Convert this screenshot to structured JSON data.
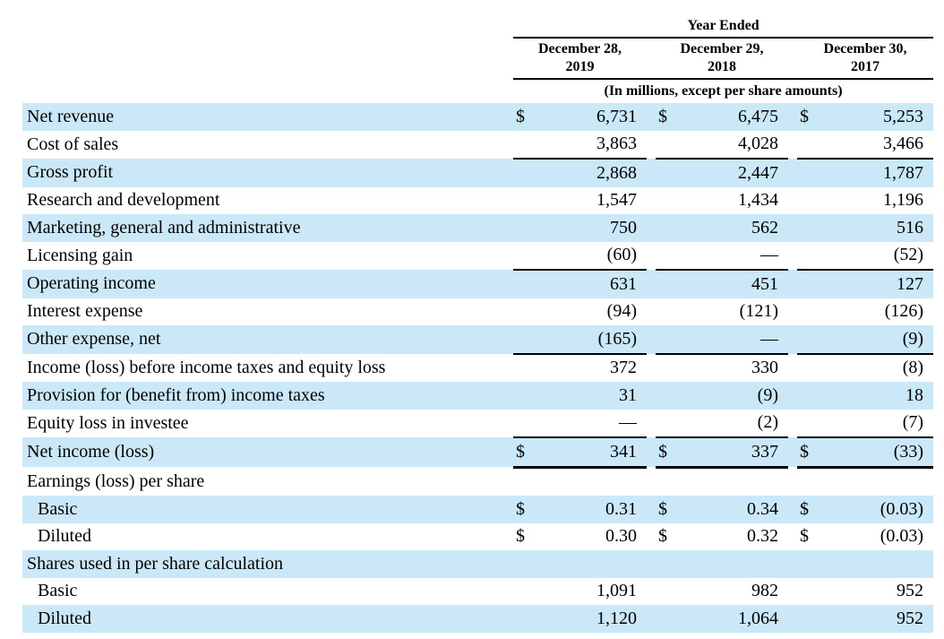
{
  "colors": {
    "row_stripe": "#cbe8f9",
    "text": "#000000",
    "rule": "#000000",
    "background": "#ffffff"
  },
  "table": {
    "currency_symbol": "$",
    "header": {
      "year_ended": "Year Ended",
      "units_note": "(In millions, except per share amounts)",
      "columns": [
        {
          "line1": "December 28,",
          "line2": "2019"
        },
        {
          "line1": "December 29,",
          "line2": "2018"
        },
        {
          "line1": "December 30,",
          "line2": "2017"
        }
      ]
    },
    "rows": [
      {
        "label": "Net revenue",
        "indent": false,
        "shaded": true,
        "dollar": true,
        "values": [
          "6,731",
          "6,475",
          "5,253"
        ],
        "underline": "none"
      },
      {
        "label": "Cost of sales",
        "indent": false,
        "shaded": false,
        "dollar": false,
        "values": [
          "3,863",
          "4,028",
          "3,466"
        ],
        "underline": "thin"
      },
      {
        "label": "Gross profit",
        "indent": false,
        "shaded": true,
        "dollar": false,
        "values": [
          "2,868",
          "2,447",
          "1,787"
        ],
        "underline": "none"
      },
      {
        "label": "Research and development",
        "indent": false,
        "shaded": false,
        "dollar": false,
        "values": [
          "1,547",
          "1,434",
          "1,196"
        ],
        "underline": "none"
      },
      {
        "label": "Marketing, general and administrative",
        "indent": false,
        "shaded": true,
        "dollar": false,
        "values": [
          "750",
          "562",
          "516"
        ],
        "underline": "none"
      },
      {
        "label": "Licensing gain",
        "indent": false,
        "shaded": false,
        "dollar": false,
        "values": [
          "(60)",
          "—",
          "(52)"
        ],
        "underline": "thin"
      },
      {
        "label": "Operating income",
        "indent": false,
        "shaded": true,
        "dollar": false,
        "values": [
          "631",
          "451",
          "127"
        ],
        "underline": "none"
      },
      {
        "label": "Interest expense",
        "indent": false,
        "shaded": false,
        "dollar": false,
        "values": [
          "(94)",
          "(121)",
          "(126)"
        ],
        "underline": "none"
      },
      {
        "label": "Other expense, net",
        "indent": false,
        "shaded": true,
        "dollar": false,
        "values": [
          "(165)",
          "—",
          "(9)"
        ],
        "underline": "thin"
      },
      {
        "label": "Income (loss) before income taxes and equity loss",
        "indent": false,
        "shaded": false,
        "dollar": false,
        "values": [
          "372",
          "330",
          "(8)"
        ],
        "underline": "none"
      },
      {
        "label": "Provision for (benefit from) income taxes",
        "indent": false,
        "shaded": true,
        "dollar": false,
        "values": [
          "31",
          "(9)",
          "18"
        ],
        "underline": "none"
      },
      {
        "label": "Equity loss in investee",
        "indent": false,
        "shaded": false,
        "dollar": false,
        "values": [
          "—",
          "(2)",
          "(7)"
        ],
        "underline": "thin"
      },
      {
        "label": "Net income (loss)",
        "indent": false,
        "shaded": true,
        "dollar": true,
        "values": [
          "341",
          "337",
          "(33)"
        ],
        "underline": "thick"
      },
      {
        "label": "Earnings (loss) per share",
        "indent": false,
        "shaded": false,
        "dollar": false,
        "values": [
          "",
          "",
          ""
        ],
        "underline": "none"
      },
      {
        "label": "Basic",
        "indent": true,
        "shaded": true,
        "dollar": true,
        "values": [
          "0.31",
          "0.34",
          "(0.03)"
        ],
        "underline": "none"
      },
      {
        "label": "Diluted",
        "indent": true,
        "shaded": false,
        "dollar": true,
        "values": [
          "0.30",
          "0.32",
          "(0.03)"
        ],
        "underline": "none"
      },
      {
        "label": "Shares used in per share calculation",
        "indent": false,
        "shaded": true,
        "dollar": false,
        "values": [
          "",
          "",
          ""
        ],
        "underline": "none"
      },
      {
        "label": "Basic",
        "indent": true,
        "shaded": false,
        "dollar": false,
        "values": [
          "1,091",
          "982",
          "952"
        ],
        "underline": "none"
      },
      {
        "label": "Diluted",
        "indent": true,
        "shaded": true,
        "dollar": false,
        "values": [
          "1,120",
          "1,064",
          "952"
        ],
        "underline": "none"
      }
    ]
  }
}
